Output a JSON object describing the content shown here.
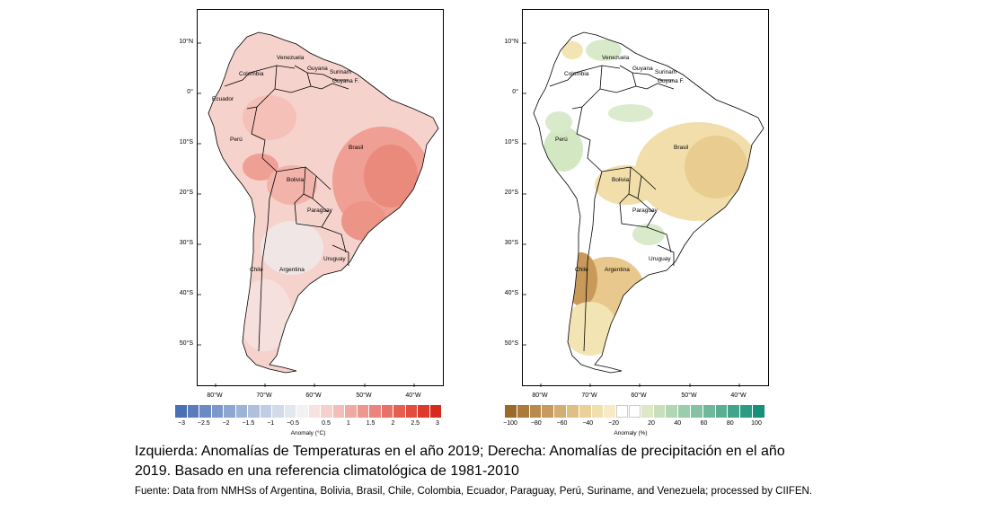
{
  "lat_labels": [
    "10°N",
    "0°",
    "10°S",
    "20°S",
    "30°S",
    "40°S",
    "50°S"
  ],
  "lon_labels": [
    "80°W",
    "70°W",
    "60°W",
    "50°W",
    "40°W"
  ],
  "countries": [
    "Colombia",
    "Venezuela",
    "Guyana",
    "Surinam",
    "Guyana F.",
    "Ecuador",
    "Perú",
    "Brasil",
    "Bolivia",
    "Paraguay",
    "Chile",
    "Argentina",
    "Uruguay"
  ],
  "temperature_legend": {
    "ticks": [
      "−3",
      "−2.5",
      "−2",
      "−1.5",
      "−1",
      "−0.5",
      "0.5",
      "1",
      "1.5",
      "2",
      "2.5",
      "3"
    ],
    "title": "Anomaly (°C)",
    "colors": [
      "#4a6fb5",
      "#5a7cbd",
      "#6b8ac4",
      "#7c98cb",
      "#8da6d2",
      "#9eb3d8",
      "#afc0de",
      "#c0cde4",
      "#d1dbea",
      "#e2e7f0",
      "#f2f2f2",
      "#f7e2e0",
      "#f5d0cc",
      "#f3bdb8",
      "#f0aaa3",
      "#ee978f",
      "#eb857b",
      "#e87267",
      "#e55f53",
      "#e24d3f",
      "#df3a2c",
      "#d62a1e"
    ]
  },
  "precipitation_legend": {
    "ticks": [
      "−100",
      "−80",
      "−60",
      "−40",
      "−20",
      "20",
      "40",
      "60",
      "80",
      "100"
    ],
    "title": "Anomaly (%)",
    "colors": [
      "#9a6a2b",
      "#a97a3b",
      "#b88a4c",
      "#c79b5f",
      "#d4ad72",
      "#e0bf85",
      "#ead199",
      "#f1dfae",
      "#f6ebc5",
      "#ffffff",
      "#ffffff",
      "#dce9c4",
      "#c7e0bb",
      "#b1d6b3",
      "#9bccab",
      "#85c2a3",
      "#6fb89b",
      "#59ae93",
      "#43a48b",
      "#2d9a83",
      "#168f7b"
    ]
  },
  "caption": "Izquierda: Anomalías de Temperaturas en el año 2019; Derecha: Anomalías de precipitación en el año 2019. Basado en una referencia climatológica de 1981-2010",
  "source": "Fuente: Data from NMHSs of Argentina, Bolivia, Brasil, Chile, Colombia, Ecuador, Paraguay, Perú, Suriname, and Venezuela; processed by CIIFEN.",
  "colors": {
    "warm_light": "#f6d2cc",
    "warm_mid": "#f0aaa0",
    "warm_strong": "#e98878",
    "cool_pale": "#eeeaea",
    "dry_light": "#f3e4b4",
    "dry_mid": "#e6c98a",
    "dry_strong": "#c99a5a",
    "wet_light": "#d6e8c6"
  }
}
